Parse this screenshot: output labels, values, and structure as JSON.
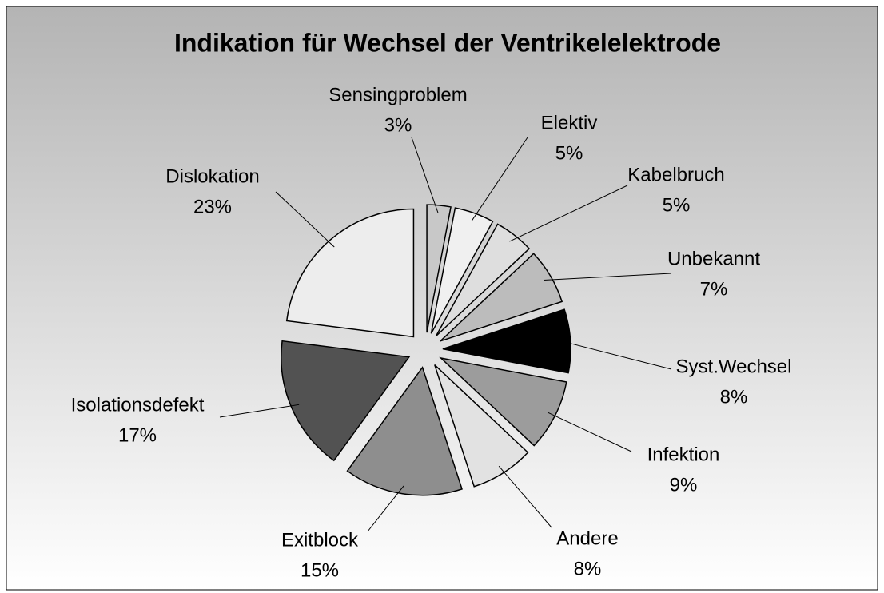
{
  "chart_data": {
    "type": "pie",
    "title": "Indikation für Wechsel der Ventrikelelektrode",
    "categories": [
      "Sensingproblem",
      "Elektiv",
      "Kabelbruch",
      "Unbekannt",
      "Syst.Wechsel",
      "Infektion",
      "Andere",
      "Exitblock",
      "Isolationsdefekt",
      "Dislokation"
    ],
    "values": [
      3,
      5,
      5,
      7,
      8,
      9,
      8,
      15,
      17,
      23
    ],
    "value_labels": [
      "3%",
      "5%",
      "5%",
      "7%",
      "8%",
      "9%",
      "8%",
      "15%",
      "17%",
      "23%"
    ],
    "colors": [
      "#c8c8c8",
      "#f0f0f0",
      "#dedede",
      "#bcbcbc",
      "#000000",
      "#9c9c9c",
      "#e2e2e2",
      "#8e8e8e",
      "#525252",
      "#ededed"
    ]
  }
}
